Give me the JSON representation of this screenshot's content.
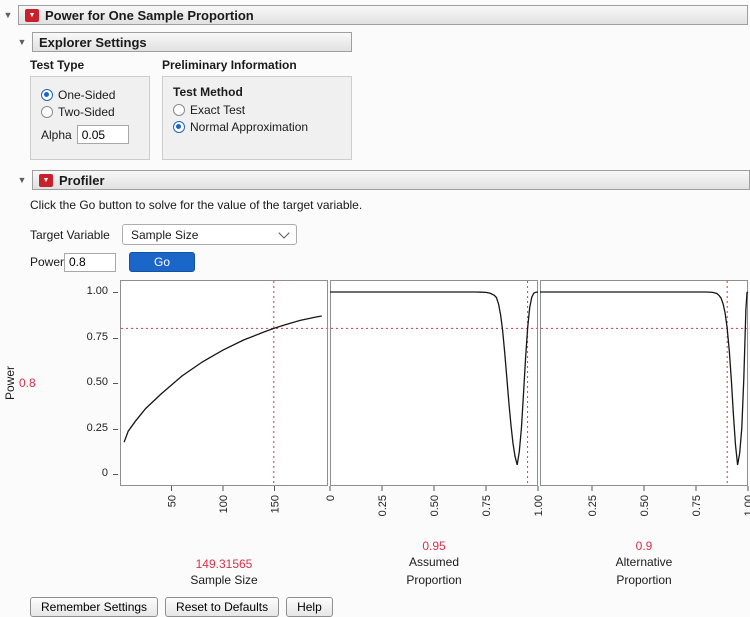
{
  "colors": {
    "red": "#d9304a",
    "blue": "#1b66c9",
    "menu_red": "#c9202c"
  },
  "title_bar": {
    "title": "Power for One Sample Proportion"
  },
  "explorer": {
    "title": "Explorer Settings",
    "test_type": {
      "label": "Test Type",
      "options": [
        {
          "label": "One-Sided",
          "selected": true
        },
        {
          "label": "Two-Sided",
          "selected": false
        }
      ],
      "alpha_label": "Alpha",
      "alpha_value": "0.05"
    },
    "preliminary": {
      "label": "Preliminary Information",
      "group_label": "Test Method",
      "options": [
        {
          "label": "Exact Test",
          "selected": false
        },
        {
          "label": "Normal Approximation",
          "selected": true
        }
      ]
    }
  },
  "profiler": {
    "title": "Profiler",
    "instruction": "Click the Go button to solve for the value of the target variable.",
    "target_variable_label": "Target Variable",
    "target_variable_value": "Sample Size",
    "power_label": "Power",
    "power_value": "0.8",
    "go_label": "Go"
  },
  "chart_data": {
    "type": "line",
    "ylabel": "Power",
    "ref_y": 0.8,
    "ref_y_label": "0.8",
    "y_range": [
      0,
      1
    ],
    "y_tick_values": [
      1.0,
      0.75,
      0.5,
      0.25,
      0
    ],
    "y_tick_labels": [
      "1.00",
      "0.75",
      "0.50",
      "0.25",
      "0"
    ],
    "legend": "none",
    "grid": false,
    "panels": [
      {
        "x_title_lines": [
          "Sample Size"
        ],
        "current_value": "149.31565",
        "ref_x": 149.31565,
        "x_range": [
          0,
          202
        ],
        "x_ticks": [
          50,
          100,
          150
        ],
        "x_tick_labels": [
          "50",
          "100",
          "150"
        ],
        "points": [
          [
            4,
            0.175
          ],
          [
            8,
            0.235
          ],
          [
            15,
            0.29
          ],
          [
            25,
            0.36
          ],
          [
            40,
            0.44
          ],
          [
            60,
            0.538
          ],
          [
            80,
            0.616
          ],
          [
            100,
            0.681
          ],
          [
            120,
            0.736
          ],
          [
            140,
            0.781
          ],
          [
            149.31565,
            0.8
          ],
          [
            160,
            0.819
          ],
          [
            175,
            0.844
          ],
          [
            190,
            0.862
          ],
          [
            196,
            0.868
          ]
        ]
      },
      {
        "x_title_lines": [
          "Assumed",
          "Proportion"
        ],
        "current_value": "0.95",
        "ref_x": 0.95,
        "x_range": [
          0,
          1
        ],
        "x_ticks": [
          0,
          0.25,
          0.5,
          0.75,
          1.0
        ],
        "x_tick_labels": [
          "0",
          "0.25",
          "0.50",
          "0.75",
          "1.00"
        ],
        "points": [
          [
            0,
            1
          ],
          [
            0.4,
            1
          ],
          [
            0.6,
            1
          ],
          [
            0.65,
            1
          ],
          [
            0.7,
            0.9999
          ],
          [
            0.73,
            0.999
          ],
          [
            0.75,
            0.998
          ],
          [
            0.77,
            0.993
          ],
          [
            0.79,
            0.982
          ],
          [
            0.8,
            0.97
          ],
          [
            0.81,
            0.935
          ],
          [
            0.82,
            0.875
          ],
          [
            0.83,
            0.79
          ],
          [
            0.84,
            0.667
          ],
          [
            0.85,
            0.53
          ],
          [
            0.86,
            0.39
          ],
          [
            0.87,
            0.267
          ],
          [
            0.88,
            0.167
          ],
          [
            0.89,
            0.095
          ],
          [
            0.9,
            0.05
          ],
          [
            0.91,
            0.123
          ],
          [
            0.92,
            0.25
          ],
          [
            0.93,
            0.43
          ],
          [
            0.94,
            0.63
          ],
          [
            0.95,
            0.8
          ],
          [
            0.96,
            0.915
          ],
          [
            0.97,
            0.972
          ],
          [
            0.98,
            0.994
          ],
          [
            0.99,
            0.999
          ],
          [
            1,
            1
          ]
        ]
      },
      {
        "x_title_lines": [
          "Alternative",
          "Proportion"
        ],
        "current_value": "0.9",
        "ref_x": 0.9,
        "x_range": [
          0,
          1
        ],
        "x_ticks": [
          0.25,
          0.5,
          0.75,
          1.0
        ],
        "x_tick_labels": [
          "0.25",
          "0.50",
          "0.75",
          "1.00"
        ],
        "points": [
          [
            0,
            1
          ],
          [
            0.4,
            1
          ],
          [
            0.6,
            1
          ],
          [
            0.75,
            1
          ],
          [
            0.8,
            0.9999
          ],
          [
            0.83,
            0.998
          ],
          [
            0.85,
            0.992
          ],
          [
            0.86,
            0.982
          ],
          [
            0.87,
            0.967
          ],
          [
            0.88,
            0.937
          ],
          [
            0.89,
            0.885
          ],
          [
            0.9,
            0.8
          ],
          [
            0.91,
            0.676
          ],
          [
            0.92,
            0.512
          ],
          [
            0.93,
            0.327
          ],
          [
            0.94,
            0.16
          ],
          [
            0.95,
            0.05
          ],
          [
            0.96,
            0.115
          ],
          [
            0.97,
            0.252
          ],
          [
            0.98,
            0.523
          ],
          [
            0.99,
            0.905
          ],
          [
            0.995,
            0.997
          ],
          [
            1,
            1
          ]
        ]
      }
    ]
  },
  "footer": {
    "buttons": [
      "Remember Settings",
      "Reset to Defaults",
      "Help"
    ]
  }
}
